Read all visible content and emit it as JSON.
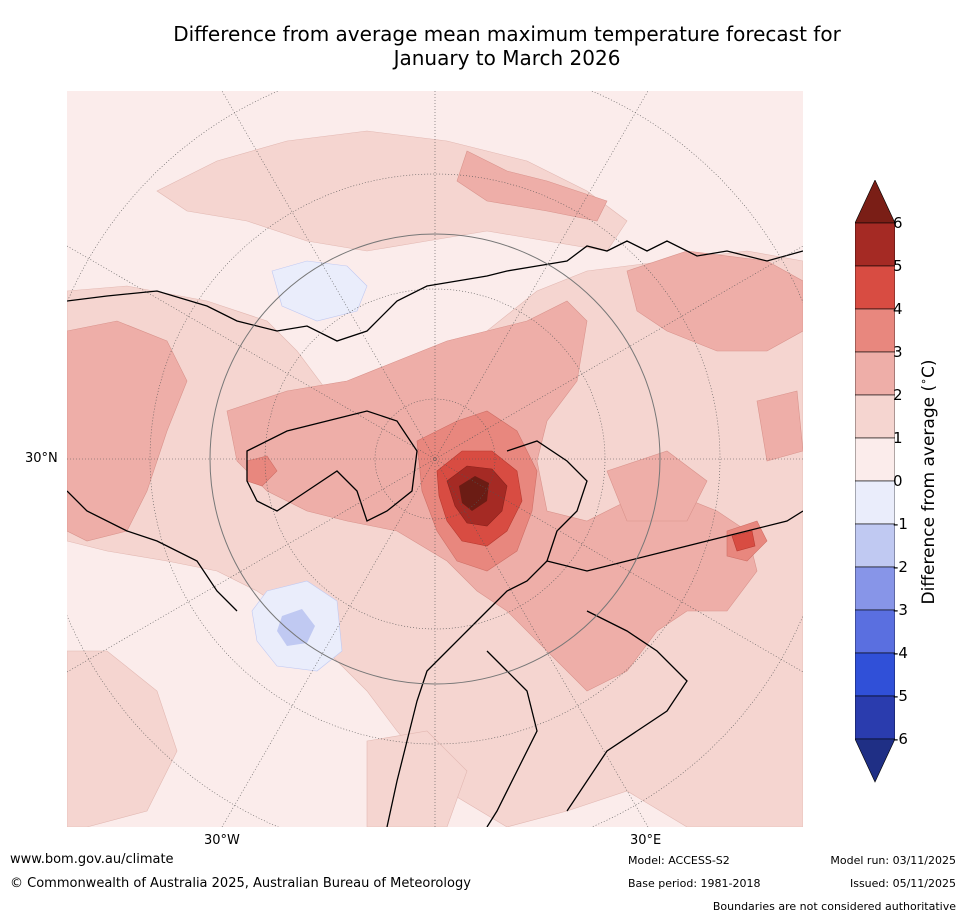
{
  "title_line1": "Difference from average mean maximum temperature forecast for",
  "title_line2": "January to March 2026",
  "map": {
    "lon_labels": [
      "30°W",
      "30°E"
    ],
    "lat_label": "30°N"
  },
  "colorbar": {
    "label": "Difference from average (°C)",
    "label_text": "Difference from average (",
    "label_unit": "C)",
    "ticks": [
      "6",
      "5",
      "4",
      "3",
      "2",
      "1",
      "0",
      "-1",
      "-2",
      "-3",
      "-4",
      "-5",
      "-6"
    ],
    "colors": [
      "#7a1e16",
      "#a52a24",
      "#d84c42",
      "#e8877e",
      "#eeaea8",
      "#f5d5d0",
      "#fbeceb",
      "#eaedfb",
      "#c0c9f2",
      "#8795e8",
      "#5a6fe0",
      "#3050d8",
      "#2a3cae",
      "#1f2f85"
    ]
  },
  "footer": {
    "website": "www.bom.gov.au/climate",
    "copyright": "© Commonwealth of Australia 2025, Australian Bureau of Meteorology",
    "model": "Model: ACCESS-S2",
    "base_period": "Base period: 1981-2018",
    "model_run": "Model run: 03/11/2025",
    "issued": "Issued: 05/11/2025",
    "disclaimer": "Boundaries are not considered authoritative"
  }
}
